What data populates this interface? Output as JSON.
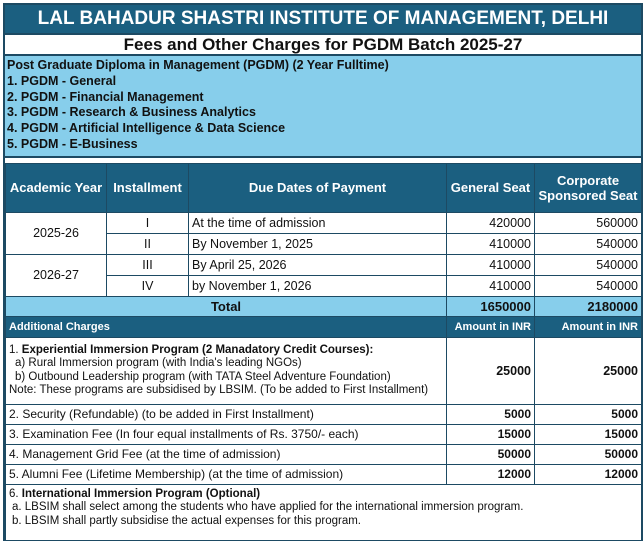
{
  "header": {
    "institute": "LAL BAHADUR SHASTRI INSTITUTE OF MANAGEMENT, DELHI",
    "title": "Fees and Other Charges for PGDM Batch 2025-27"
  },
  "programs": {
    "heading": "Post Graduate Diploma in Management (PGDM) (2 Year Fulltime)",
    "items": [
      "1. PGDM - General",
      "2. PGDM - Financial Management",
      "3. PGDM - Research & Business Analytics",
      "4. PGDM - Artificial Intelligence & Data Science",
      "5. PGDM - E-Business"
    ]
  },
  "fees": {
    "columns": [
      "Academic Year",
      "Installment",
      "Due Dates of Payment",
      "General Seat",
      "Corporate Sponsored Seat"
    ],
    "years": [
      "2025-26",
      "2026-27"
    ],
    "rows": [
      {
        "installment": "I",
        "due": "At the time of admission",
        "general": "420000",
        "corporate": "560000"
      },
      {
        "installment": "II",
        "due": "By November 1, 2025",
        "general": "410000",
        "corporate": "540000"
      },
      {
        "installment": "III",
        "due": "By April 25, 2026",
        "general": "410000",
        "corporate": "540000"
      },
      {
        "installment": "IV",
        "due": "by November 1, 2026",
        "general": "410000",
        "corporate": "540000"
      }
    ],
    "total": {
      "label": "Total",
      "general": "1650000",
      "corporate": "2180000"
    }
  },
  "additional": {
    "heading": "Additional Charges",
    "amount_label": "Amount in INR",
    "item1": {
      "num": "1. ",
      "title": "Experiential Immersion Program (2 Manadatory Credit Courses):",
      "a": "a) Rural Immersion program (with India's leading NGOs)",
      "b": "b) Outbound Leadership program (with TATA Steel Adventure Foundation)",
      "note": "Note: These programs are subsidised by LBSIM. (To be added to First Installment)",
      "general": "25000",
      "corporate": "25000"
    },
    "items": [
      {
        "label": "2. Security (Refundable) (to be added in First Installment)",
        "general": "5000",
        "corporate": "5000"
      },
      {
        "label": "3. Examination Fee (In four equal installments of Rs. 3750/- each)",
        "general": "15000",
        "corporate": "15000"
      },
      {
        "label": "4. Management Grid Fee (at the time of admission)",
        "general": "50000",
        "corporate": "50000"
      },
      {
        "label": "5. Alumni Fee (Lifetime Membership) (at the time of admission)",
        "general": "12000",
        "corporate": "12000"
      }
    ],
    "item6": {
      "num": "6. ",
      "title": "International Immersion Program (Optional)",
      "a": "a. LBSIM shall select among the students who have applied for the international immersion program.",
      "b": "b. LBSIM shall partly subsidise the actual expenses for this program."
    }
  }
}
